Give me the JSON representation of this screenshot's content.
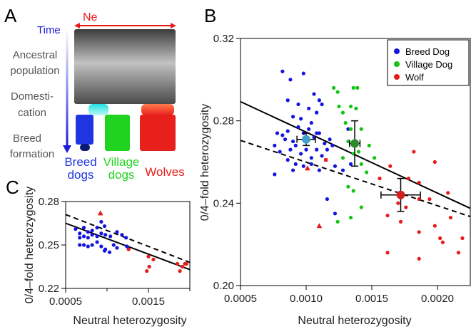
{
  "panel_a": {
    "letter": "A",
    "ne_label": "Ne",
    "time_label": "Time",
    "stages": [
      "Ancestral",
      "population",
      "Domesti-",
      "cation",
      "Breed",
      "formation"
    ],
    "groups": [
      {
        "label_1": "Breed",
        "label_2": "dogs",
        "color": "#1f35e0"
      },
      {
        "label_1": "Village",
        "label_2": "dogs",
        "color": "#1fd31f"
      },
      {
        "label_1": "Wolves",
        "label_2": "",
        "color": "#e8201c"
      }
    ]
  },
  "colors": {
    "breed": "#1414e0",
    "village": "#12c412",
    "wolf": "#e81a1a",
    "ne": "#e81a1a",
    "time": "#1a1ad8"
  },
  "chart_data": [
    {
      "panel": "B",
      "type": "scatter",
      "xlabel": "Neutral heterozygosity",
      "ylabel": "0/4–fold heterozygosity",
      "xlim": [
        0.0005,
        0.00225
      ],
      "ylim": [
        0.2,
        0.32
      ],
      "xticks": [
        "0.0005",
        "0.0010",
        "0.0015",
        "0.0020"
      ],
      "yticks": [
        "0.20",
        "0.24",
        "0.28",
        "0.32"
      ],
      "legend_position": "top-right",
      "legend": [
        "Breed Dog",
        "Village Dog",
        "Wolf"
      ],
      "series": [
        {
          "name": "Breed Dog",
          "points": [
            [
              0.00082,
              0.304
            ],
            [
              0.00088,
              0.3
            ],
            [
              0.00098,
              0.303
            ],
            [
              0.00106,
              0.293
            ],
            [
              0.0011,
              0.29
            ],
            [
              0.00086,
              0.29
            ],
            [
              0.00094,
              0.288
            ],
            [
              0.00102,
              0.286
            ],
            [
              0.00108,
              0.284
            ],
            [
              0.00112,
              0.288
            ],
            [
              0.0009,
              0.282
            ],
            [
              0.00096,
              0.281
            ],
            [
              0.00104,
              0.279
            ],
            [
              0.00078,
              0.274
            ],
            [
              0.00082,
              0.273
            ],
            [
              0.00086,
              0.275
            ],
            [
              0.0009,
              0.27
            ],
            [
              0.00094,
              0.277
            ],
            [
              0.00098,
              0.274
            ],
            [
              0.00102,
              0.276
            ],
            [
              0.00106,
              0.272
            ],
            [
              0.0011,
              0.274
            ],
            [
              0.00114,
              0.269
            ],
            [
              0.00118,
              0.271
            ],
            [
              0.00076,
              0.268
            ],
            [
              0.0008,
              0.265
            ],
            [
              0.00084,
              0.271
            ],
            [
              0.00088,
              0.266
            ],
            [
              0.00092,
              0.268
            ],
            [
              0.00096,
              0.264
            ],
            [
              0.001,
              0.266
            ],
            [
              0.00104,
              0.262
            ],
            [
              0.00108,
              0.266
            ],
            [
              0.00112,
              0.263
            ],
            [
              0.00116,
              0.266
            ],
            [
              0.0012,
              0.268
            ],
            [
              0.00086,
              0.261
            ],
            [
              0.00092,
              0.259
            ],
            [
              0.00098,
              0.258
            ],
            [
              0.00104,
              0.259
            ],
            [
              0.0011,
              0.256
            ],
            [
              0.00076,
              0.254
            ],
            [
              0.0009,
              0.256
            ],
            [
              0.00122,
              0.258
            ],
            [
              0.00128,
              0.256
            ],
            [
              0.00132,
              0.276
            ],
            [
              0.00116,
              0.242
            ],
            [
              0.00122,
              0.235
            ],
            [
              0.00134,
              0.259
            ],
            [
              0.00108,
              0.274
            ]
          ]
        },
        {
          "name": "Village Dog",
          "points": [
            [
              0.00121,
              0.296
            ],
            [
              0.00124,
              0.294
            ],
            [
              0.00136,
              0.296
            ],
            [
              0.00139,
              0.296
            ],
            [
              0.00125,
              0.287
            ],
            [
              0.00128,
              0.284
            ],
            [
              0.00134,
              0.287
            ],
            [
              0.00138,
              0.286
            ],
            [
              0.0013,
              0.279
            ],
            [
              0.00134,
              0.276
            ],
            [
              0.00142,
              0.276
            ],
            [
              0.00132,
              0.27
            ],
            [
              0.00136,
              0.264
            ],
            [
              0.0014,
              0.265
            ],
            [
              0.00128,
              0.262
            ],
            [
              0.00142,
              0.259
            ],
            [
              0.00148,
              0.268
            ],
            [
              0.00152,
              0.262
            ],
            [
              0.00132,
              0.248
            ],
            [
              0.00136,
              0.246
            ],
            [
              0.00142,
              0.238
            ],
            [
              0.00134,
              0.233
            ],
            [
              0.00124,
              0.231
            ],
            [
              0.00146,
              0.255
            ]
          ]
        },
        {
          "name": "Wolf",
          "points": [
            [
              0.00182,
              0.265
            ],
            [
              0.00198,
              0.26
            ],
            [
              0.00164,
              0.258
            ],
            [
              0.00178,
              0.252
            ],
            [
              0.00156,
              0.252
            ],
            [
              0.00186,
              0.25
            ],
            [
              0.00208,
              0.245
            ],
            [
              0.0017,
              0.24
            ],
            [
              0.00186,
              0.242
            ],
            [
              0.00194,
              0.242
            ],
            [
              0.00176,
              0.238
            ],
            [
              0.00162,
              0.234
            ],
            [
              0.00172,
              0.231
            ],
            [
              0.0021,
              0.233
            ],
            [
              0.00198,
              0.229
            ],
            [
              0.00186,
              0.226
            ],
            [
              0.00202,
              0.223
            ],
            [
              0.00162,
              0.216
            ],
            [
              0.00186,
              0.213
            ],
            [
              0.00204,
              0.221
            ],
            [
              0.00216,
              0.216
            ],
            [
              0.00219,
              0.223
            ]
          ]
        }
      ],
      "wolf_triangles": [
        [
          0.00101,
          0.257
        ],
        [
          0.0011,
          0.229
        ]
      ],
      "wolf_squares": [
        [
          0.00115,
          0.261
        ]
      ],
      "means": [
        {
          "group": "Breed Dog",
          "x": 0.001,
          "y": 0.271,
          "xerr": 7e-05,
          "yerr": 0.003,
          "color": "#3fa0c8"
        },
        {
          "group": "Village Dog",
          "x": 0.00137,
          "y": 0.269,
          "xerr": 4e-05,
          "yerr": 0.011,
          "color": "#2d8a2d"
        },
        {
          "group": "Wolf",
          "x": 0.00172,
          "y": 0.244,
          "xerr": 0.00015,
          "yerr": 0.008,
          "color": "#d42020"
        }
      ],
      "lines": [
        {
          "style": "solid",
          "x": [
            0.0005,
            0.00225
          ],
          "y": [
            0.2893,
            0.2375
          ]
        },
        {
          "style": "dashed",
          "x": [
            0.0005,
            0.00225
          ],
          "y": [
            0.2705,
            0.2335
          ]
        }
      ]
    },
    {
      "panel": "C",
      "type": "scatter",
      "xlabel": "Neutral heterozygosity",
      "ylabel": "0/4–fold heterozygosity",
      "xlim": [
        0.0005,
        0.002
      ],
      "ylim": [
        0.22,
        0.28
      ],
      "xticks": [
        "0.0005",
        "0.0015"
      ],
      "yticks": [
        "0.22",
        "0.25",
        "0.28"
      ],
      "series": [
        {
          "name": "Breed Dog",
          "points": [
            [
              0.00062,
              0.261
            ],
            [
              0.00067,
              0.258
            ],
            [
              0.00072,
              0.262
            ],
            [
              0.00077,
              0.259
            ],
            [
              0.00082,
              0.26
            ],
            [
              0.00088,
              0.262
            ],
            [
              0.00093,
              0.266
            ],
            [
              0.00097,
              0.263
            ],
            [
              0.00067,
              0.255
            ],
            [
              0.00072,
              0.256
            ],
            [
              0.00077,
              0.255
            ],
            [
              0.00082,
              0.257
            ],
            [
              0.00088,
              0.256
            ],
            [
              0.00093,
              0.258
            ],
            [
              0.00098,
              0.257
            ],
            [
              0.00104,
              0.256
            ],
            [
              0.00112,
              0.259
            ],
            [
              0.00118,
              0.257
            ],
            [
              0.00123,
              0.255
            ],
            [
              0.00067,
              0.25
            ],
            [
              0.00072,
              0.25
            ],
            [
              0.00077,
              0.249
            ],
            [
              0.00082,
              0.25
            ],
            [
              0.00088,
              0.252
            ],
            [
              0.00093,
              0.249
            ],
            [
              0.00098,
              0.247
            ],
            [
              0.00108,
              0.25
            ],
            [
              0.00112,
              0.248
            ],
            [
              0.00124,
              0.249
            ],
            [
              0.00097,
              0.246
            ],
            [
              0.00103,
              0.245
            ]
          ]
        },
        {
          "name": "Wolf",
          "points": [
            [
              0.00126,
              0.247
            ],
            [
              0.0015,
              0.242
            ],
            [
              0.00156,
              0.24
            ],
            [
              0.00151,
              0.235
            ],
            [
              0.00148,
              0.232
            ],
            [
              0.00185,
              0.237
            ],
            [
              0.00188,
              0.232
            ],
            [
              0.00191,
              0.235
            ],
            [
              0.00194,
              0.237
            ],
            [
              0.00196,
              0.237
            ]
          ]
        }
      ],
      "wolf_triangles": [
        [
          0.00092,
          0.272
        ]
      ],
      "lines": [
        {
          "style": "solid",
          "x": [
            0.0005,
            0.002
          ],
          "y": [
            0.265,
            0.233
          ]
        },
        {
          "style": "dashed",
          "x": [
            0.0005,
            0.002
          ],
          "y": [
            0.271,
            0.238
          ]
        }
      ]
    }
  ]
}
